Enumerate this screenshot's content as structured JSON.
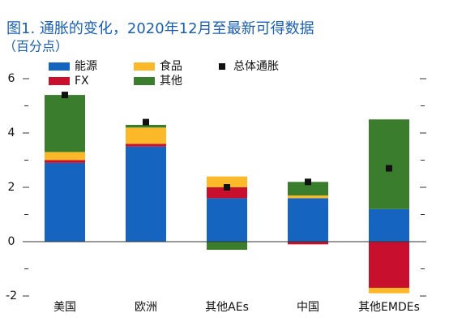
{
  "chart_data": {
    "type": "bar",
    "stacked": true,
    "title": "图1. 通胀的变化，2020年12月至最新可得数据",
    "subtitle": "（百分点）",
    "categories": [
      "美国",
      "欧洲",
      "其他AEs",
      "中国",
      "其他EMDEs"
    ],
    "series": [
      {
        "name": "能源",
        "color": "#1565c0",
        "values": [
          2.9,
          3.5,
          1.6,
          1.6,
          1.2
        ]
      },
      {
        "name": "FX",
        "color": "#c8102e",
        "values": [
          0.1,
          0.1,
          0.4,
          -0.1,
          -1.7
        ]
      },
      {
        "name": "食品",
        "color": "#fbb92a",
        "values": [
          0.3,
          0.6,
          0.4,
          0.1,
          -0.2
        ]
      },
      {
        "name": "其他",
        "color": "#3a7d2c",
        "values": [
          2.1,
          0.1,
          -0.3,
          0.5,
          3.3
        ]
      },
      {
        "name": "总体通胀",
        "color": "#111111",
        "type": "marker",
        "values": [
          5.4,
          4.4,
          2.0,
          2.2,
          2.7
        ]
      }
    ],
    "ylim": [
      -2,
      6
    ],
    "yticks": [
      -2,
      0,
      2,
      4,
      6
    ],
    "minor_yticks": [
      -1,
      1,
      3,
      5
    ]
  }
}
